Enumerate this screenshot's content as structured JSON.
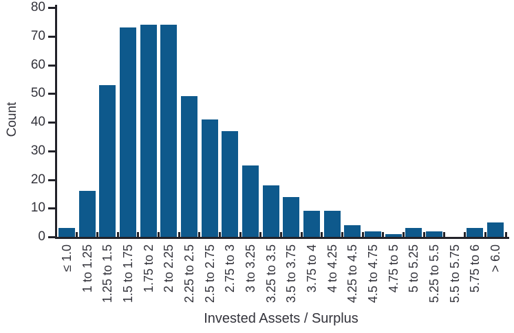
{
  "chart_data": {
    "type": "bar",
    "title": "",
    "xlabel": "Invested Assets / Surplus",
    "ylabel": "Count",
    "ylim": [
      0,
      80
    ],
    "yticks": [
      0,
      10,
      20,
      30,
      40,
      50,
      60,
      70,
      80
    ],
    "grid": false,
    "legend": null,
    "bar_color": "#0E598C",
    "axis_color": "#222229",
    "text_color": "#33333B",
    "categories": [
      "≤ 1.0",
      "1 to 1.25",
      "1.25 to 1.5",
      "1.5 to 1.75",
      "1.75 to 2",
      "2 to 2.25",
      "2.25 to 2.5",
      "2.5 to 2.75",
      "2.75 to 3",
      "3 to 3.25",
      "3.25 to 3.5",
      "3.5 to 3.75",
      "3.75 to 4",
      "4 to 4.25",
      "4.25 to 4.5",
      "4.5 to 4.75",
      "4.75 to 5",
      "5 to 5.25",
      "5.25 to 5.5",
      "5.5 to 5.75",
      "5.75 to 6",
      "> 6.0"
    ],
    "values": [
      3,
      16,
      53,
      73,
      74,
      74,
      49,
      41,
      37,
      25,
      18,
      14,
      9,
      9,
      4,
      2,
      1,
      3,
      2,
      0,
      3,
      5
    ]
  }
}
